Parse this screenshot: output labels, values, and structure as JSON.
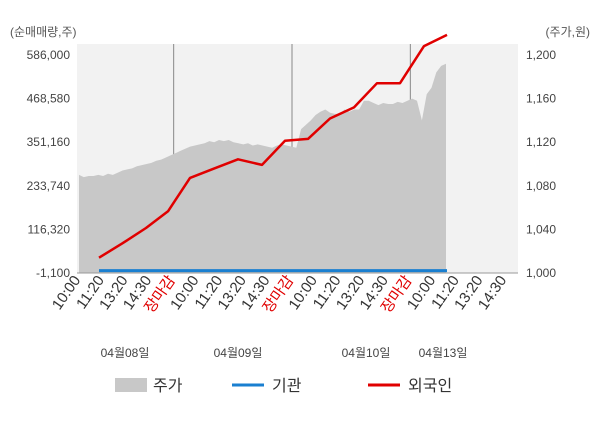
{
  "chart_data": {
    "type": "line",
    "left_axis_unit": "(순매매량,주)",
    "right_axis_unit": "(주가,원)",
    "left_ticks": [
      "586,000",
      "468,580",
      "351,160",
      "233,740",
      "116,320",
      "-1,100"
    ],
    "left_ylim": [
      -1100,
      586000
    ],
    "right_ticks": [
      "1,200",
      "1,160",
      "1,120",
      "1,080",
      "1,040",
      "1,000"
    ],
    "right_ylim": [
      1000,
      1200
    ],
    "x_tick_labels": [
      "10:00",
      "11:20",
      "13:20",
      "14:30",
      "장마감",
      "10:00",
      "11:20",
      "13:20",
      "14:30",
      "장마감",
      "10:00",
      "11:20",
      "13:20",
      "14:30",
      "장마감",
      "10:00",
      "11:20",
      "13:20",
      "14:30"
    ],
    "date_labels": [
      "04월08일",
      "04월09일",
      "04월10일",
      "04월13일"
    ],
    "legend": [
      "주가",
      "기관",
      "외국인"
    ],
    "colors": {
      "price": "#c8c8c8",
      "institution": "#1a7fd0",
      "foreign": "#e00000"
    },
    "series": [
      {
        "name": "주가",
        "axis": "right",
        "values": [
          1090,
          1088,
          1089,
          1089,
          1090,
          1089,
          1091,
          1090,
          1092,
          1094,
          1095,
          1096,
          1098,
          1099,
          1100,
          1101,
          1103,
          1104,
          1106,
          1108,
          1110,
          1112,
          1114,
          1116,
          1117,
          1118,
          1119,
          1121,
          1120,
          1122,
          1121,
          1122,
          1120,
          1119,
          1118,
          1119,
          1117,
          1118,
          1117,
          1116,
          1115,
          1117,
          1118,
          1117,
          1116,
          1115,
          1132,
          1136,
          1140,
          1145,
          1148,
          1150,
          1147,
          1146,
          1146,
          1150,
          1148,
          1150,
          1150,
          1158,
          1158,
          1156,
          1154,
          1156,
          1155,
          1155,
          1157,
          1156,
          1158,
          1160,
          1158,
          1140,
          1164,
          1170,
          1184,
          1190,
          1192
        ]
      },
      {
        "name": "기관",
        "axis": "left",
        "values": [
          0,
          0,
          0,
          0,
          0,
          0,
          0,
          0,
          0,
          0,
          0,
          0,
          0,
          0,
          0,
          0,
          0,
          0,
          0,
          0,
          0,
          0,
          0,
          0,
          0,
          0,
          0,
          0,
          0,
          0,
          0,
          0,
          0,
          0,
          0,
          0,
          0,
          0,
          0,
          0,
          0,
          0,
          0,
          0,
          0,
          0,
          0,
          0,
          0,
          0,
          0,
          0,
          0,
          0,
          0,
          0,
          0,
          0,
          0,
          0,
          0,
          0,
          0,
          0,
          0,
          0,
          0,
          0,
          0,
          0,
          0,
          0,
          0,
          0,
          0,
          0,
          0
        ]
      },
      {
        "name": "외국인",
        "axis": "left",
        "values": [
          40000,
          78000,
          120000,
          165000,
          255000,
          280000,
          305000,
          290000,
          355000,
          360000,
          415000,
          445000,
          510000,
          510000,
          610000,
          640000
        ]
      }
    ],
    "grid": true
  }
}
